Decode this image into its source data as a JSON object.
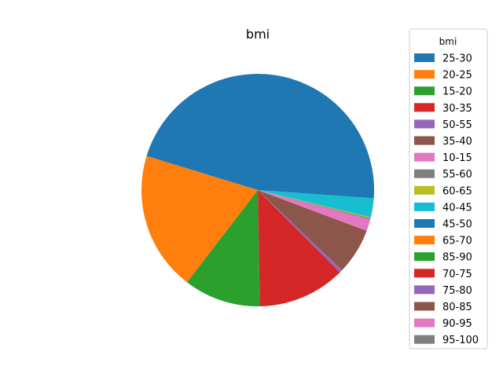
{
  "chart_data": {
    "type": "pie",
    "title": "bmi",
    "legend_title": "bmi",
    "legend_position": "right",
    "start_angle_deg": 0,
    "direction": "counterclockwise",
    "slices": [
      {
        "label": "25-30",
        "value": 44.5,
        "color": "#1f77b4"
      },
      {
        "label": "20-25",
        "value": 19.0,
        "color": "#ff7f0e"
      },
      {
        "label": "15-20",
        "value": 10.5,
        "color": "#2ca02c"
      },
      {
        "label": "30-35",
        "value": 12.0,
        "color": "#d62728"
      },
      {
        "label": "50-55",
        "value": 0.4,
        "color": "#9467bd"
      },
      {
        "label": "35-40",
        "value": 6.3,
        "color": "#8c564b"
      },
      {
        "label": "10-15",
        "value": 1.6,
        "color": "#e377c2"
      },
      {
        "label": "55-60",
        "value": 0.15,
        "color": "#7f7f7f"
      },
      {
        "label": "60-65",
        "value": 0.15,
        "color": "#bcbd22"
      },
      {
        "label": "40-45",
        "value": 2.6,
        "color": "#17becf"
      },
      {
        "label": "45-50",
        "value": 1.1,
        "color": "#1f77b4"
      },
      {
        "label": "65-70",
        "value": 0.0,
        "color": "#ff7f0e"
      },
      {
        "label": "85-90",
        "value": 0.0,
        "color": "#2ca02c"
      },
      {
        "label": "70-75",
        "value": 0.0,
        "color": "#d62728"
      },
      {
        "label": "75-80",
        "value": 0.0,
        "color": "#9467bd"
      },
      {
        "label": "80-85",
        "value": 0.0,
        "color": "#8c564b"
      },
      {
        "label": "90-95",
        "value": 0.0,
        "color": "#e377c2"
      },
      {
        "label": "95-100",
        "value": 0.0,
        "color": "#7f7f7f"
      }
    ]
  }
}
